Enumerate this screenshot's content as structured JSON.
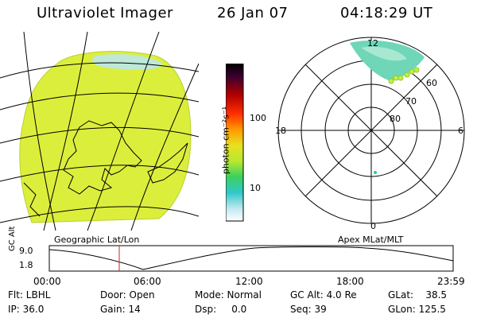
{
  "header": {
    "title": "Ultraviolet Imager",
    "date": "26 Jan 07",
    "time": "04:18:29 UT"
  },
  "colorbar": {
    "unit": "photon cm⁻²s⁻¹",
    "ticks": [
      "100",
      "10"
    ]
  },
  "polar": {
    "hours": [
      "12",
      "18",
      "6",
      "0"
    ],
    "lats": [
      "60",
      "70",
      "80"
    ]
  },
  "panels": {
    "left_label": "Geographic Lat/Lon",
    "right_label": "Apex  MLat/MLT"
  },
  "altitude_plot": {
    "axis_label": "GC Alt",
    "y_ticks": [
      "9.0",
      "1.8"
    ],
    "x_ticks": [
      "00:00",
      "06:00",
      "12:00",
      "18:00",
      "23:59"
    ]
  },
  "status": {
    "flt": "Flt: LBHL",
    "ip": "IP: 36.0",
    "door": "Door: Open",
    "gain": "Gain: 14",
    "mode": "Mode: Normal",
    "dsp": "Dsp:     0.0",
    "gcalt": "GC Alt: 4.0 Re",
    "seq": "Seq: 39",
    "glat": "GLat:    38.5",
    "glon": "GLon: 125.5"
  },
  "colors": {
    "field": "#dcee3c",
    "aurora": "#6fd6b8",
    "marker": "#cc2222"
  }
}
